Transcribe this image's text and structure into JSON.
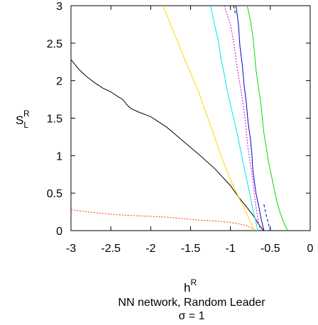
{
  "chart_data": {
    "type": "line",
    "xlabel": {
      "base": "h",
      "sup": "R"
    },
    "ylabel": {
      "base": "S",
      "sub": "L",
      "sup": "R"
    },
    "caption": [
      "NN network, Random Leader",
      "σ = 1"
    ],
    "xlim": [
      -3,
      0
    ],
    "ylim": [
      0,
      3
    ],
    "xticks": [
      "-3",
      "-2.5",
      "-2",
      "-1.5",
      "-1",
      "-0.5",
      "0"
    ],
    "yticks": [
      "0",
      "0.5",
      "1",
      "1.5",
      "2",
      "2.5",
      "3"
    ],
    "grid": false,
    "legend": "none",
    "series": [
      {
        "color": "#ff3300",
        "dash": "2,2",
        "x": [
          -3,
          -2.8,
          -2.6,
          -2.4,
          -2.2,
          -2.0,
          -1.8,
          -1.6,
          -1.4,
          -1.2,
          -1.0,
          -0.8,
          -0.68
        ],
        "y": [
          0.28,
          0.25,
          0.23,
          0.21,
          0.2,
          0.19,
          0.18,
          0.16,
          0.14,
          0.13,
          0.11,
          0.07,
          0.0
        ]
      },
      {
        "color": "#000000",
        "dash": "",
        "x": [
          -3,
          -2.9,
          -2.8,
          -2.7,
          -2.6,
          -2.5,
          -2.4,
          -2.35,
          -2.3,
          -2.25,
          -2.15,
          -2.0,
          -1.9,
          -1.8,
          -1.6,
          -1.4,
          -1.2,
          -1.0,
          -0.9,
          -0.8,
          -0.7,
          -0.63,
          -0.58
        ],
        "y": [
          2.28,
          2.15,
          2.05,
          1.97,
          1.9,
          1.85,
          1.78,
          1.75,
          1.68,
          1.63,
          1.58,
          1.52,
          1.45,
          1.38,
          1.2,
          1.02,
          0.83,
          0.6,
          0.45,
          0.32,
          0.18,
          0.06,
          0.0
        ]
      },
      {
        "color": "#ffd700",
        "dash": "",
        "x": [
          -1.85,
          -1.8,
          -1.7,
          -1.6,
          -1.5,
          -1.4,
          -1.3,
          -1.2,
          -1.1,
          -1.0,
          -0.9,
          -0.82,
          -0.75,
          -0.7
        ],
        "y": [
          3.0,
          2.88,
          2.62,
          2.35,
          2.1,
          1.85,
          1.55,
          1.25,
          0.95,
          0.68,
          0.45,
          0.28,
          0.12,
          0.0
        ]
      },
      {
        "color": "#00e5ee",
        "dash": "",
        "x": [
          -1.25,
          -1.2,
          -1.15,
          -1.12,
          -1.08,
          -1.05,
          -1.0,
          -0.95,
          -0.9,
          -0.85,
          -0.8,
          -0.75,
          -0.72,
          -0.68,
          -0.66
        ],
        "y": [
          3.0,
          2.75,
          2.52,
          2.3,
          2.1,
          1.92,
          1.68,
          1.45,
          1.22,
          0.95,
          0.7,
          0.45,
          0.28,
          0.12,
          0.0
        ]
      },
      {
        "color": "#cc00cc",
        "dash": "2,2",
        "x": [
          -1.08,
          -1.0,
          -0.95,
          -0.92,
          -0.88,
          -0.85,
          -0.82,
          -0.8,
          -0.78,
          -0.75,
          -0.72,
          -0.7,
          -0.68,
          -0.66,
          -0.64,
          -0.62
        ],
        "y": [
          3.0,
          2.75,
          2.45,
          2.2,
          1.95,
          1.75,
          1.52,
          1.3,
          1.1,
          0.88,
          0.68,
          0.48,
          0.32,
          0.18,
          0.06,
          0.0
        ]
      },
      {
        "color": "#0000cc",
        "dash": "",
        "x": [
          -0.93,
          -0.9,
          -0.88,
          -0.85,
          -0.83,
          -0.8,
          -0.78,
          -0.75,
          -0.73,
          -0.72,
          -0.7,
          -0.68,
          -0.65,
          -0.62,
          -0.58
        ],
        "y": [
          3.0,
          2.75,
          2.45,
          2.2,
          1.95,
          1.7,
          1.45,
          1.22,
          1.0,
          0.82,
          0.65,
          0.5,
          0.35,
          0.18,
          0.0
        ]
      },
      {
        "color": "#0000cc",
        "dash": "4,3",
        "x": [
          -0.58,
          -0.55,
          -0.52,
          -0.5
        ],
        "y": [
          0.35,
          0.2,
          0.08,
          0.0
        ]
      },
      {
        "color": "#000000",
        "dash": "4,3",
        "x": [
          -0.96,
          -0.94
        ],
        "y": [
          3.0,
          2.9
        ]
      },
      {
        "color": "#00dd00",
        "dash": "",
        "x": [
          -0.79,
          -0.75,
          -0.72,
          -0.7,
          -0.68,
          -0.65,
          -0.62,
          -0.6,
          -0.58,
          -0.55,
          -0.52,
          -0.48,
          -0.45,
          -0.42,
          -0.38,
          -0.33,
          -0.28
        ],
        "y": [
          3.0,
          2.8,
          2.6,
          2.38,
          2.15,
          1.92,
          1.7,
          1.5,
          1.3,
          1.1,
          0.9,
          0.7,
          0.55,
          0.4,
          0.25,
          0.1,
          0.0
        ]
      }
    ]
  }
}
